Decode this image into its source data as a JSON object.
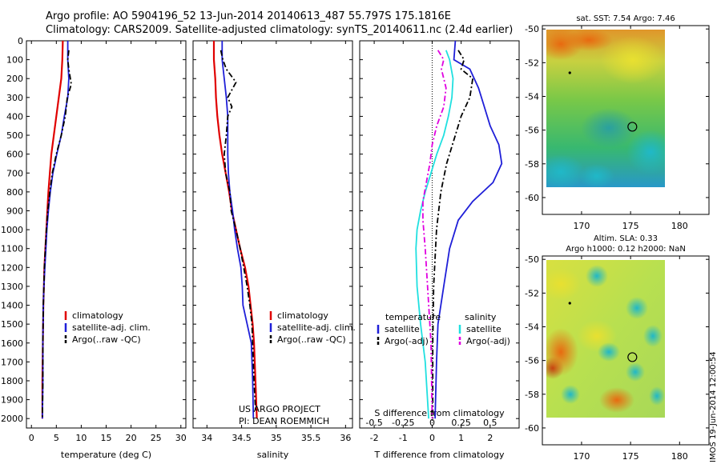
{
  "header": {
    "line1": "Argo profile: AO 5904196_52 13-Jun-2014 20140613_487 55.797S 175.1816E",
    "line2": "Climatology: CARS2009. Satellite-adjusted climatology: synTS_20140611.nc (2.4d earlier)"
  },
  "colors": {
    "climatology": "#e00000",
    "satellite": "#1f1fd8",
    "argo": "#000000",
    "cyan": "#20e0e0",
    "magenta": "#e000e0"
  },
  "depth_ticks": [
    0,
    100,
    200,
    300,
    400,
    500,
    600,
    700,
    800,
    900,
    1000,
    1100,
    1200,
    1300,
    1400,
    1500,
    1600,
    1700,
    1800,
    1900,
    2000
  ],
  "footer": {
    "project": "US ARGO PROJECT",
    "pi": "PI: DEAN ROEMMICH"
  },
  "stamp": "IMOS 19-Jun-2014 12:00:54",
  "chart_data": [
    {
      "type": "line",
      "id": "temperature",
      "xlabel": "temperature (deg C)",
      "xlim": [
        -1,
        31
      ],
      "ylim": [
        2050,
        0
      ],
      "xticks": [
        0,
        5,
        10,
        15,
        20,
        25,
        30
      ],
      "legend": [
        "climatology",
        "satellite-adj. clim.",
        "Argo(..raw -QC)"
      ],
      "series": [
        {
          "name": "climatology",
          "style": "solid",
          "color": "#e00000",
          "points": [
            [
              6.3,
              0
            ],
            [
              6.2,
              100
            ],
            [
              6.0,
              200
            ],
            [
              5.5,
              300
            ],
            [
              5.0,
              400
            ],
            [
              4.5,
              500
            ],
            [
              4.0,
              600
            ],
            [
              3.7,
              700
            ],
            [
              3.4,
              800
            ],
            [
              3.2,
              900
            ],
            [
              3.0,
              1000
            ],
            [
              2.8,
              1100
            ],
            [
              2.6,
              1200
            ],
            [
              2.5,
              1300
            ],
            [
              2.4,
              1400
            ],
            [
              2.3,
              1600
            ],
            [
              2.2,
              1800
            ],
            [
              2.2,
              2000
            ]
          ]
        },
        {
          "name": "satellite-adj. clim.",
          "style": "solid",
          "color": "#1f1fd8",
          "points": [
            [
              7.3,
              0
            ],
            [
              7.3,
              100
            ],
            [
              7.5,
              200
            ],
            [
              7.3,
              300
            ],
            [
              6.6,
              400
            ],
            [
              6.0,
              500
            ],
            [
              5.1,
              600
            ],
            [
              4.3,
              700
            ],
            [
              3.8,
              800
            ],
            [
              3.4,
              900
            ],
            [
              3.1,
              1000
            ],
            [
              2.9,
              1100
            ],
            [
              2.7,
              1200
            ],
            [
              2.5,
              1300
            ],
            [
              2.4,
              1400
            ],
            [
              2.3,
              1600
            ],
            [
              2.3,
              1800
            ],
            [
              2.2,
              2000
            ]
          ]
        },
        {
          "name": "Argo(..raw -QC)",
          "style": "dashed",
          "color": "#000000",
          "points": [
            [
              7.5,
              50
            ],
            [
              7.3,
              100
            ],
            [
              7.5,
              150
            ],
            [
              8.0,
              230
            ],
            [
              7.2,
              300
            ],
            [
              6.8,
              400
            ],
            [
              6.0,
              500
            ],
            [
              5.0,
              600
            ],
            [
              4.2,
              700
            ],
            [
              3.7,
              800
            ],
            [
              3.3,
              900
            ],
            [
              3.0,
              1000
            ],
            [
              2.8,
              1100
            ],
            [
              2.6,
              1200
            ],
            [
              2.5,
              1300
            ],
            [
              2.4,
              1400
            ],
            [
              2.3,
              1600
            ],
            [
              2.3,
              1800
            ],
            [
              2.2,
              2000
            ]
          ]
        }
      ]
    },
    {
      "type": "line",
      "id": "salinity",
      "xlabel": "salinity",
      "xlim": [
        33.8,
        36.1
      ],
      "ylim": [
        2050,
        0
      ],
      "xticks": [
        34,
        34.5,
        35,
        35.5,
        36
      ],
      "legend": [
        "climatology",
        "satellite-adj. clim.",
        "Argo(..raw -QC)"
      ],
      "series": [
        {
          "name": "climatology",
          "style": "solid",
          "color": "#e00000",
          "points": [
            [
              34.1,
              0
            ],
            [
              34.1,
              100
            ],
            [
              34.12,
              200
            ],
            [
              34.13,
              300
            ],
            [
              34.15,
              400
            ],
            [
              34.18,
              500
            ],
            [
              34.22,
              600
            ],
            [
              34.27,
              700
            ],
            [
              34.32,
              800
            ],
            [
              34.36,
              900
            ],
            [
              34.42,
              1000
            ],
            [
              34.48,
              1100
            ],
            [
              34.55,
              1200
            ],
            [
              34.6,
              1300
            ],
            [
              34.63,
              1400
            ],
            [
              34.66,
              1500
            ],
            [
              34.68,
              1600
            ],
            [
              34.7,
              1800
            ],
            [
              34.72,
              2000
            ]
          ]
        },
        {
          "name": "satellite-adj. clim.",
          "style": "solid",
          "color": "#1f1fd8",
          "points": [
            [
              34.22,
              0
            ],
            [
              34.22,
              100
            ],
            [
              34.25,
              200
            ],
            [
              34.28,
              300
            ],
            [
              34.3,
              400
            ],
            [
              34.3,
              500
            ],
            [
              34.3,
              600
            ],
            [
              34.31,
              700
            ],
            [
              34.33,
              800
            ],
            [
              34.37,
              900
            ],
            [
              34.4,
              1000
            ],
            [
              34.44,
              1100
            ],
            [
              34.49,
              1200
            ],
            [
              34.51,
              1300
            ],
            [
              34.52,
              1400
            ],
            [
              34.58,
              1500
            ],
            [
              34.64,
              1600
            ],
            [
              34.66,
              1800
            ],
            [
              34.67,
              2000
            ]
          ]
        },
        {
          "name": "Argo(..raw -QC)",
          "style": "dashed",
          "color": "#000000",
          "points": [
            [
              34.2,
              50
            ],
            [
              34.23,
              100
            ],
            [
              34.28,
              150
            ],
            [
              34.42,
              220
            ],
            [
              34.3,
              300
            ],
            [
              34.36,
              350
            ],
            [
              34.3,
              400
            ],
            [
              34.28,
              500
            ],
            [
              34.25,
              600
            ],
            [
              34.27,
              700
            ],
            [
              34.33,
              800
            ],
            [
              34.35,
              900
            ],
            [
              34.42,
              1000
            ],
            [
              34.48,
              1100
            ],
            [
              34.53,
              1200
            ],
            [
              34.58,
              1300
            ],
            [
              34.62,
              1400
            ],
            [
              34.65,
              1500
            ],
            [
              34.66,
              1600
            ],
            [
              34.68,
              1800
            ],
            [
              34.7,
              1950
            ]
          ]
        }
      ]
    },
    {
      "type": "line",
      "id": "differences",
      "xlabel": "T difference from climatology",
      "xlabel2": "S difference from climatology",
      "xlim": [
        -2.5,
        3.0
      ],
      "ylim": [
        2050,
        0
      ],
      "xticks": [
        -2,
        -1,
        0,
        1,
        2
      ],
      "xticks2": [
        "-0.5",
        "-0.25",
        "0",
        "0.25",
        "0.5"
      ],
      "legend_titles": [
        "temperature",
        "salinity"
      ],
      "legend": [
        "satellite",
        "Argo(-adj)",
        "satellite",
        "Argo(-adj)"
      ],
      "series": [
        {
          "name": "T satellite",
          "style": "solid",
          "color": "#1f1fd8",
          "points": [
            [
              0.8,
              0
            ],
            [
              0.75,
              100
            ],
            [
              1.3,
              150
            ],
            [
              1.6,
              250
            ],
            [
              1.8,
              350
            ],
            [
              2.0,
              450
            ],
            [
              2.3,
              550
            ],
            [
              2.4,
              650
            ],
            [
              2.1,
              750
            ],
            [
              1.4,
              850
            ],
            [
              0.9,
              950
            ],
            [
              0.6,
              1100
            ],
            [
              0.4,
              1300
            ],
            [
              0.2,
              1500
            ],
            [
              0.15,
              1700
            ],
            [
              0.1,
              2000
            ]
          ]
        },
        {
          "name": "T Argo(-adj)",
          "style": "dashed",
          "color": "#000000",
          "points": [
            [
              0.9,
              50
            ],
            [
              1.1,
              100
            ],
            [
              1.0,
              150
            ],
            [
              1.4,
              200
            ],
            [
              1.3,
              300
            ],
            [
              1.0,
              400
            ],
            [
              0.8,
              500
            ],
            [
              0.5,
              650
            ],
            [
              0.3,
              800
            ],
            [
              0.15,
              1000
            ],
            [
              0.05,
              1300
            ],
            [
              0.02,
              1600
            ],
            [
              0.02,
              2000
            ]
          ]
        },
        {
          "name": "S satellite",
          "style": "solid",
          "color": "#20e0e0",
          "points": [
            [
              0.12,
              50
            ],
            [
              0.15,
              100
            ],
            [
              0.18,
              200
            ],
            [
              0.17,
              300
            ],
            [
              0.14,
              400
            ],
            [
              0.1,
              500
            ],
            [
              0.04,
              600
            ],
            [
              -0.01,
              700
            ],
            [
              -0.06,
              800
            ],
            [
              -0.1,
              900
            ],
            [
              -0.13,
              1000
            ],
            [
              -0.14,
              1100
            ],
            [
              -0.13,
              1300
            ],
            [
              -0.1,
              1500
            ],
            [
              -0.06,
              1700
            ],
            [
              -0.03,
              2000
            ]
          ]
        },
        {
          "name": "S Argo(-adj)",
          "style": "dashed",
          "color": "#e000e0",
          "points": [
            [
              0.05,
              50
            ],
            [
              0.1,
              100
            ],
            [
              0.08,
              150
            ],
            [
              0.12,
              250
            ],
            [
              0.1,
              350
            ],
            [
              0.04,
              450
            ],
            [
              0.0,
              550
            ],
            [
              -0.02,
              650
            ],
            [
              -0.05,
              750
            ],
            [
              -0.08,
              850
            ],
            [
              -0.08,
              950
            ],
            [
              -0.06,
              1100
            ],
            [
              -0.04,
              1300
            ],
            [
              -0.01,
              1600
            ],
            [
              0.0,
              2000
            ]
          ]
        }
      ]
    },
    {
      "type": "heatmap",
      "id": "sst_map",
      "title": "sat. SST: 7.54  Argo: 7.46",
      "xlim": [
        166,
        183
      ],
      "ylim": [
        -61,
        -49.8
      ],
      "xticks": [
        170,
        175,
        180
      ],
      "yticks": [
        -50,
        -52,
        -54,
        -56,
        -58,
        -60
      ],
      "argo_position": [
        175.18,
        -55.8
      ],
      "marker_position": [
        168.8,
        -52.6
      ],
      "data_extent": [
        166.8,
        180,
        -60,
        -50
      ]
    },
    {
      "type": "heatmap",
      "id": "sla_map",
      "title": "Altim. SLA: 0.33",
      "subtitle": "Argo h1000: 0.12 h2000: NaN",
      "xlim": [
        166,
        183
      ],
      "ylim": [
        -61,
        -49.8
      ],
      "xticks": [
        170,
        175,
        180
      ],
      "yticks": [
        -50,
        -52,
        -54,
        -56,
        -58,
        -60
      ],
      "argo_position": [
        175.18,
        -55.8
      ],
      "marker_position": [
        168.8,
        -52.6
      ],
      "data_extent": [
        166.8,
        180,
        -60,
        -50
      ]
    }
  ]
}
